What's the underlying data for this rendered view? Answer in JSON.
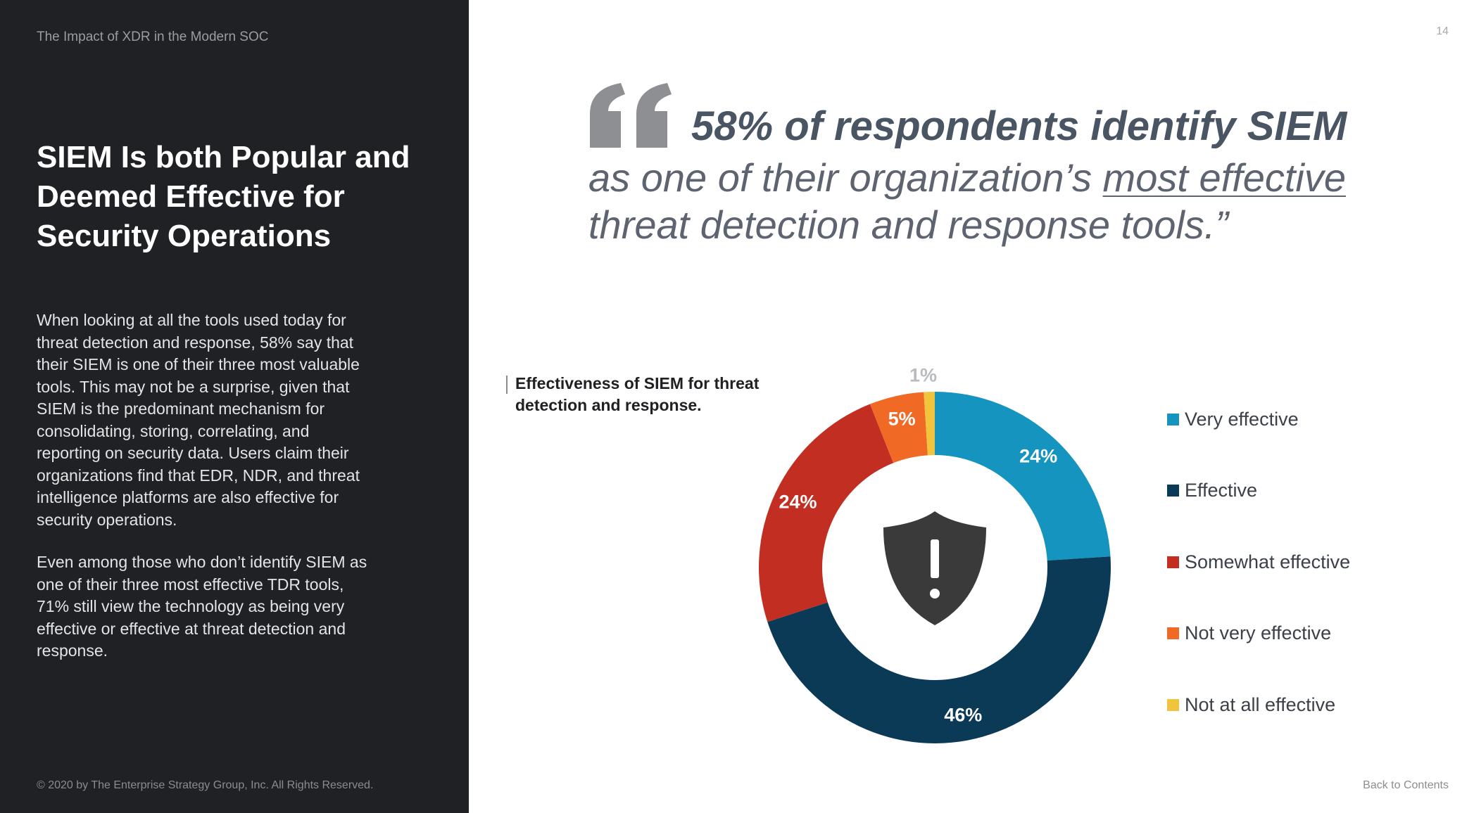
{
  "left_panel": {
    "report_title": "The Impact of XDR in the Modern SOC",
    "section_title": "SIEM Is both Popular and Deemed Effective for Security Operations",
    "paragraph_1": "When looking at all the tools used today for threat detection and response, 58% say that their SIEM is one of their three most valuable tools. This may not be a surprise, given that SIEM is the predominant mechanism for consolidating, storing, correlating, and reporting on security data. Users claim their organizations find that EDR, NDR, and threat intelligence platforms are also effective for security operations.",
    "paragraph_2": "Even among those who don’t identify SIEM as one of their three most effective TDR tools, 71% still view the technology as being very effective or effective at threat detection and response.",
    "copyright": "© 2020 by The Enterprise Strategy Group, Inc. All Rights Reserved."
  },
  "page_number": "14",
  "quote": {
    "strong": "58% of respondents identify SIEM",
    "line2_pre": "as one of their organization’s ",
    "line2_underlined": "most effective",
    "line3": "threat detection and response tools.”"
  },
  "footer": {
    "back_link": "Back to Contents"
  },
  "colors": {
    "left_panel_bg": "#202124",
    "very_effective": "#1594bf",
    "effective": "#0b3a57",
    "somewhat_effective": "#c22f22",
    "not_very_effective": "#f06a25",
    "not_at_all_effective": "#f0c43c",
    "center_icon": "#3a3a3a"
  },
  "chart_data": {
    "type": "pie",
    "style": "donut",
    "title": "Effectiveness of SIEM for threat detection and response.",
    "unit": "%",
    "categories": [
      "Very effective",
      "Effective",
      "Somewhat effective",
      "Not very effective",
      "Not at all effective"
    ],
    "values": [
      24,
      46,
      24,
      5,
      1
    ],
    "labels": [
      "24%",
      "46%",
      "24%",
      "5%",
      "1%"
    ],
    "colors": [
      "#1594bf",
      "#0b3a57",
      "#c22f22",
      "#f06a25",
      "#f0c43c"
    ],
    "legend": "right",
    "center_icon": "shield-alert-icon"
  }
}
